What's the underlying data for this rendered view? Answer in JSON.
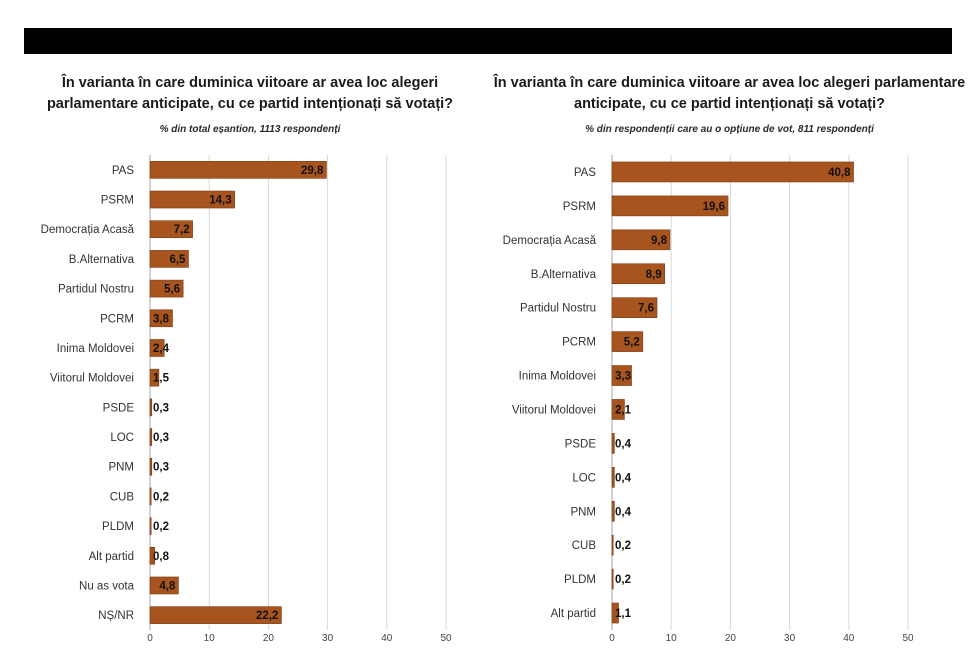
{
  "chart_data": [
    {
      "type": "bar",
      "orientation": "horizontal",
      "title": "În varianta în care duminica viitoare ar avea loc alegeri parlamentare anticipate, cu ce partid intenționați să votați?",
      "subtitle": "% din total eșantion, 1113 respondenți",
      "categories": [
        "PAS",
        "PSRM",
        "Democrația Acasă",
        "B.Alternativa",
        "Partidul Nostru",
        "PCRM",
        "Inima Moldovei",
        "Viitorul Moldovei",
        "PSDE",
        "LOC",
        "PNM",
        "CUB",
        "PLDM",
        "Alt partid",
        "Nu as vota",
        "NȘ/NR"
      ],
      "values": [
        29.8,
        14.3,
        7.2,
        6.5,
        5.6,
        3.8,
        2.4,
        1.5,
        0.3,
        0.3,
        0.3,
        0.2,
        0.2,
        0.8,
        4.8,
        22.2
      ],
      "value_labels": [
        "29,8",
        "14,3",
        "7,2",
        "6,5",
        "5,6",
        "3,8",
        "2,4",
        "1,5",
        "0,3",
        "0,3",
        "0,3",
        "0,2",
        "0,2",
        "0,8",
        "4,8",
        "22,2"
      ],
      "xlim": [
        0,
        50
      ],
      "xticks": [
        0,
        10,
        20,
        30,
        40,
        50
      ],
      "grid": true,
      "color": "#a8541f"
    },
    {
      "type": "bar",
      "orientation": "horizontal",
      "title": "În varianta în care duminica viitoare ar avea loc alegeri parlamentare anticipate, cu ce partid intenționați să votați?",
      "subtitle": "% din respondenții care au o opțiune de vot, 811 respondenți",
      "categories": [
        "PAS",
        "PSRM",
        "Democrația Acasă",
        "B.Alternativa",
        "Partidul Nostru",
        "PCRM",
        "Inima Moldovei",
        "Viitorul Moldovei",
        "PSDE",
        "LOC",
        "PNM",
        "CUB",
        "PLDM",
        "Alt partid"
      ],
      "values": [
        40.8,
        19.6,
        9.8,
        8.9,
        7.6,
        5.2,
        3.3,
        2.1,
        0.4,
        0.4,
        0.4,
        0.2,
        0.2,
        1.1
      ],
      "value_labels": [
        "40,8",
        "19,6",
        "9,8",
        "8,9",
        "7,6",
        "5,2",
        "3,3",
        "2,1",
        "0,4",
        "0,4",
        "0,4",
        "0,2",
        "0,2",
        "1,1"
      ],
      "xlim": [
        0,
        50
      ],
      "xticks": [
        0,
        10,
        20,
        30,
        40,
        50
      ],
      "grid": true,
      "color": "#a8541f"
    }
  ]
}
